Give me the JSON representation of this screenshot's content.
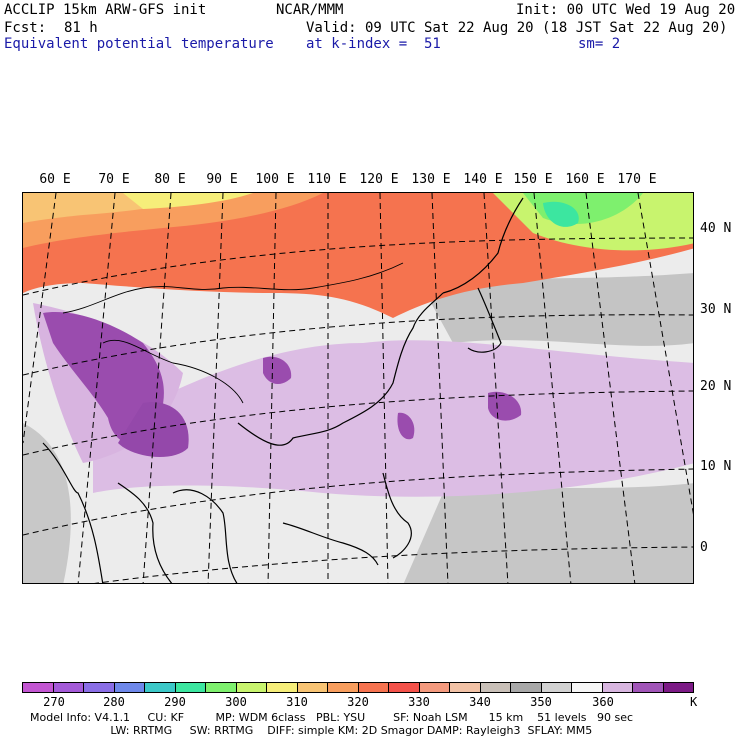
{
  "header": {
    "model": "ACCLIP 15km ARW-GFS init",
    "org": "NCAR/MMM",
    "init": "Init: 00 UTC Wed 19 Aug 20",
    "fcst_label": "Fcst:",
    "fcst_value": "81 h",
    "valid": "Valid: 09 UTC Sat 22 Aug 20 (18 JST Sat 22 Aug 20)",
    "field": "Equivalent potential temperature",
    "level": "at k-index =  51",
    "smoothing": "sm= 2"
  },
  "map": {
    "longitude_labels": [
      "60 E",
      "70 E",
      "80 E",
      "90 E",
      "100 E",
      "110 E",
      "120 E",
      "130 E",
      "140 E",
      "150 E",
      "160 E",
      "170 E"
    ],
    "latitude_labels": [
      "40 N",
      "30 N",
      "20 N",
      "10 N",
      "0"
    ]
  },
  "colorbar": {
    "colors": [
      "#c356d2",
      "#a45ad8",
      "#8a6ee6",
      "#6e88ea",
      "#3cc8c8",
      "#3ce6a0",
      "#7ef06e",
      "#c8f46e",
      "#f6ee7a",
      "#f8c474",
      "#f89e5e",
      "#f67350",
      "#f4524a",
      "#f49a7e",
      "#f2c2a6",
      "#c9c0b8",
      "#a8a8a8",
      "#d2d2d2",
      "#f6f6f6",
      "#d8b6e0",
      "#a155b8",
      "#7c1a86"
    ],
    "tick_labels": [
      "270",
      "280",
      "290",
      "300",
      "310",
      "320",
      "330",
      "340",
      "350",
      "360"
    ],
    "unit": "K"
  },
  "footer": {
    "line1": "Model Info: V4.1.1     CU: KF         MP: WDM 6class   PBL: YSU        SF: Noah LSM      15 km    51 levels   90 sec",
    "line2": "                       LW: RRTMG     SW: RRTMG    DIFF: simple KM: 2D Smagor DAMP: Rayleigh3  SFLAY: MM5"
  }
}
